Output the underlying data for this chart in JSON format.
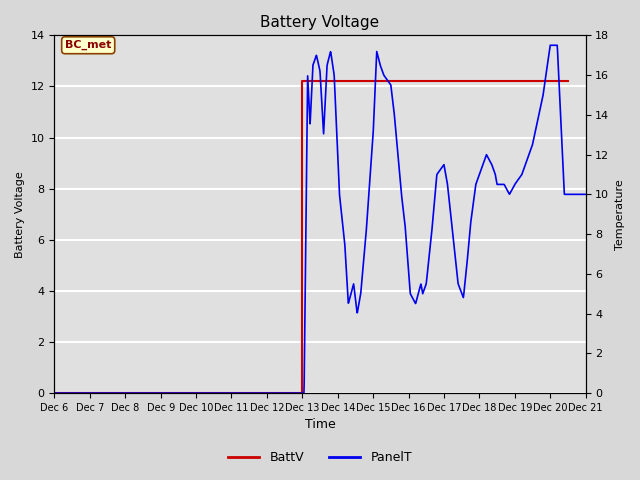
{
  "title": "Battery Voltage",
  "xlabel": "Time",
  "ylabel_left": "Battery Voltage",
  "ylabel_right": "Temperature",
  "ylim_left": [
    0,
    14
  ],
  "ylim_right": [
    0,
    18
  ],
  "yticks_left": [
    0,
    2,
    4,
    6,
    8,
    10,
    12,
    14
  ],
  "yticks_right": [
    0,
    2,
    4,
    6,
    8,
    10,
    12,
    14,
    16,
    18
  ],
  "fig_bg_color": "#d8d8d8",
  "plot_bg_color": "#e0e0e0",
  "annotation_text": "BC_met",
  "annotation_box_color": "#ffffcc",
  "annotation_text_color": "#8b0000",
  "annotation_box_edge_color": "#8b4000",
  "batt_color": "#cc0000",
  "panel_color": "#0000ee",
  "legend_labels": [
    "BattV",
    "PanelT"
  ],
  "xtick_labels": [
    "Dec 6",
    "Dec 7",
    "Dec 8",
    "Dec 9",
    "Dec 10",
    "Dec 11",
    "Dec 12",
    "Dec 13",
    "Dec 14",
    "Dec 15",
    "Dec 16",
    "Dec 17",
    "Dec 18",
    "Dec 19",
    "Dec 20",
    "Dec 21"
  ]
}
